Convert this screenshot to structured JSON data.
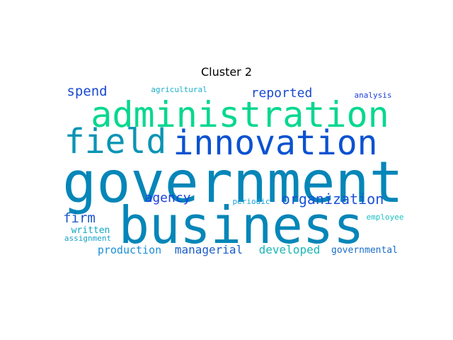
{
  "title": "Cluster 2",
  "words": [
    {
      "text": "government",
      "color": "#0586b8"
    },
    {
      "text": "business",
      "color": "#0586b8"
    },
    {
      "text": "administration",
      "color": "#06d88e"
    },
    {
      "text": "innovation",
      "color": "#0b52d1"
    },
    {
      "text": "field",
      "color": "#0b94b5"
    },
    {
      "text": "organization",
      "color": "#1a52d9"
    },
    {
      "text": "spend",
      "color": "#1a4ad2"
    },
    {
      "text": "reported",
      "color": "#1a4ad2"
    },
    {
      "text": "agency",
      "color": "#1a3fe0"
    },
    {
      "text": "firm",
      "color": "#1a55cc"
    },
    {
      "text": "production",
      "color": "#1a8fd9"
    },
    {
      "text": "managerial",
      "color": "#1a5ccc"
    },
    {
      "text": "developed",
      "color": "#1bb5b5"
    },
    {
      "text": "governmental",
      "color": "#1a6fc9"
    },
    {
      "text": "written",
      "color": "#13a6c8"
    },
    {
      "text": "assignment",
      "color": "#15a3c7"
    },
    {
      "text": "periodic",
      "color": "#1aa3d9"
    },
    {
      "text": "employee",
      "color": "#1cc2c0"
    },
    {
      "text": "analysis",
      "color": "#1a3fe0"
    },
    {
      "text": "agricultural",
      "color": "#1bb0c9"
    }
  ]
}
